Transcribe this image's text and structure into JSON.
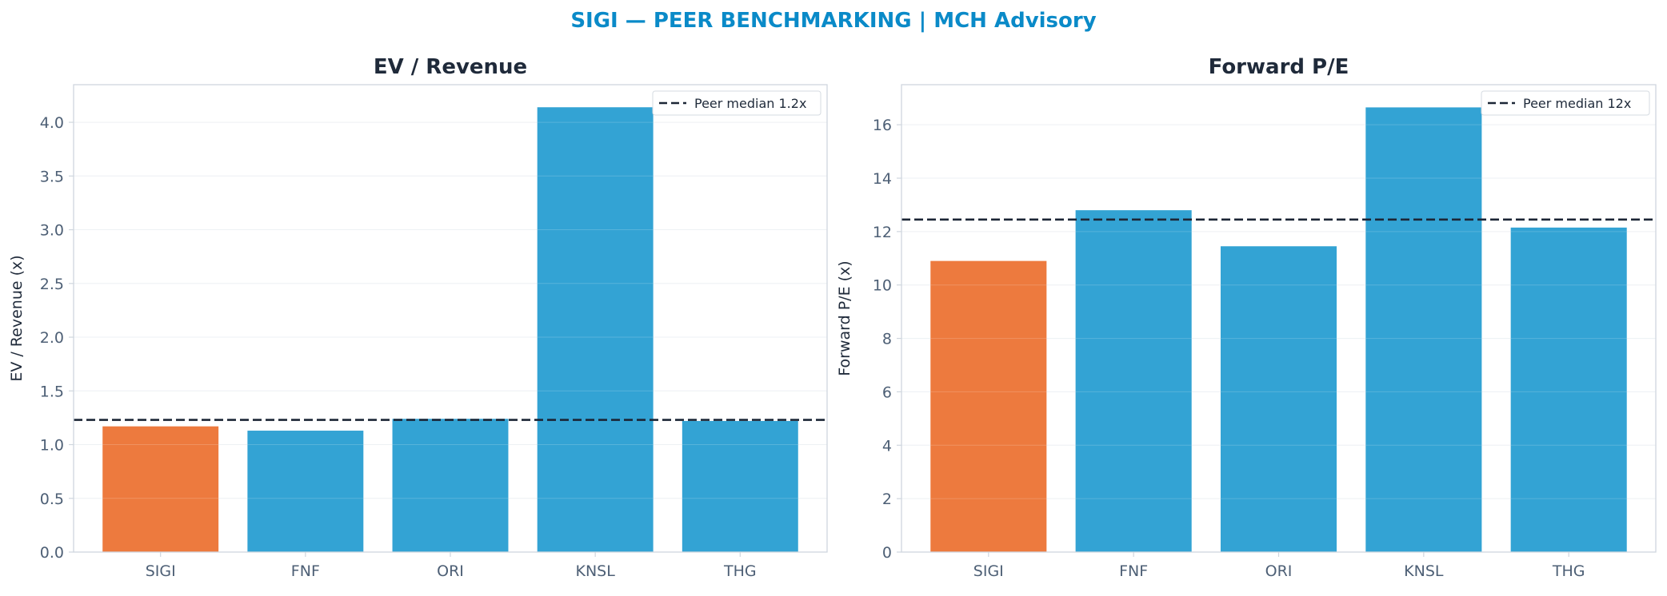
{
  "suptitle": "SIGI — PEER BENCHMARKING | MCH Advisory",
  "colors": {
    "title": "#0a8ac8",
    "panel_title": "#1f2a3a",
    "highlight_bar": "#ed7a3e",
    "peer_bar": "#33a3d4",
    "median_line": "#1c2636",
    "tick_text": "#4d5f75",
    "axis_label": "#1f2a3a",
    "frame": "#cfd6de",
    "grid": "#e9eef2"
  },
  "chart_data": [
    {
      "type": "bar",
      "title": "EV / Revenue",
      "ylabel": "EV / Revenue (x)",
      "xlabel": "",
      "categories": [
        "SIGI",
        "FNF",
        "ORI",
        "KNSL",
        "THG"
      ],
      "values": [
        1.17,
        1.13,
        1.24,
        4.14,
        1.22
      ],
      "highlight": "SIGI",
      "ylim": [
        0,
        4.35
      ],
      "yticks": [
        "0.0",
        "0.5",
        "1.0",
        "1.5",
        "2.0",
        "2.5",
        "3.0",
        "3.5",
        "4.0"
      ],
      "ytick_values": [
        0,
        0.5,
        1.0,
        1.5,
        2.0,
        2.5,
        3.0,
        3.5,
        4.0
      ],
      "reference_line": {
        "value": 1.23,
        "label": "Peer median 1.2x",
        "style": "dashed"
      },
      "legend": "top-right",
      "grid": true
    },
    {
      "type": "bar",
      "title": "Forward P/E",
      "ylabel": "Forward P/E (x)",
      "xlabel": "",
      "categories": [
        "SIGI",
        "FNF",
        "ORI",
        "KNSL",
        "THG"
      ],
      "values": [
        10.9,
        12.8,
        11.45,
        16.65,
        12.15
      ],
      "highlight": "SIGI",
      "ylim": [
        0,
        17.5
      ],
      "yticks": [
        "0",
        "2",
        "4",
        "6",
        "8",
        "10",
        "12",
        "14",
        "16"
      ],
      "ytick_values": [
        0,
        2,
        4,
        6,
        8,
        10,
        12,
        14,
        16
      ],
      "reference_line": {
        "value": 12.45,
        "label": "Peer median 12x",
        "style": "dashed"
      },
      "legend": "top-right",
      "grid": true
    }
  ]
}
